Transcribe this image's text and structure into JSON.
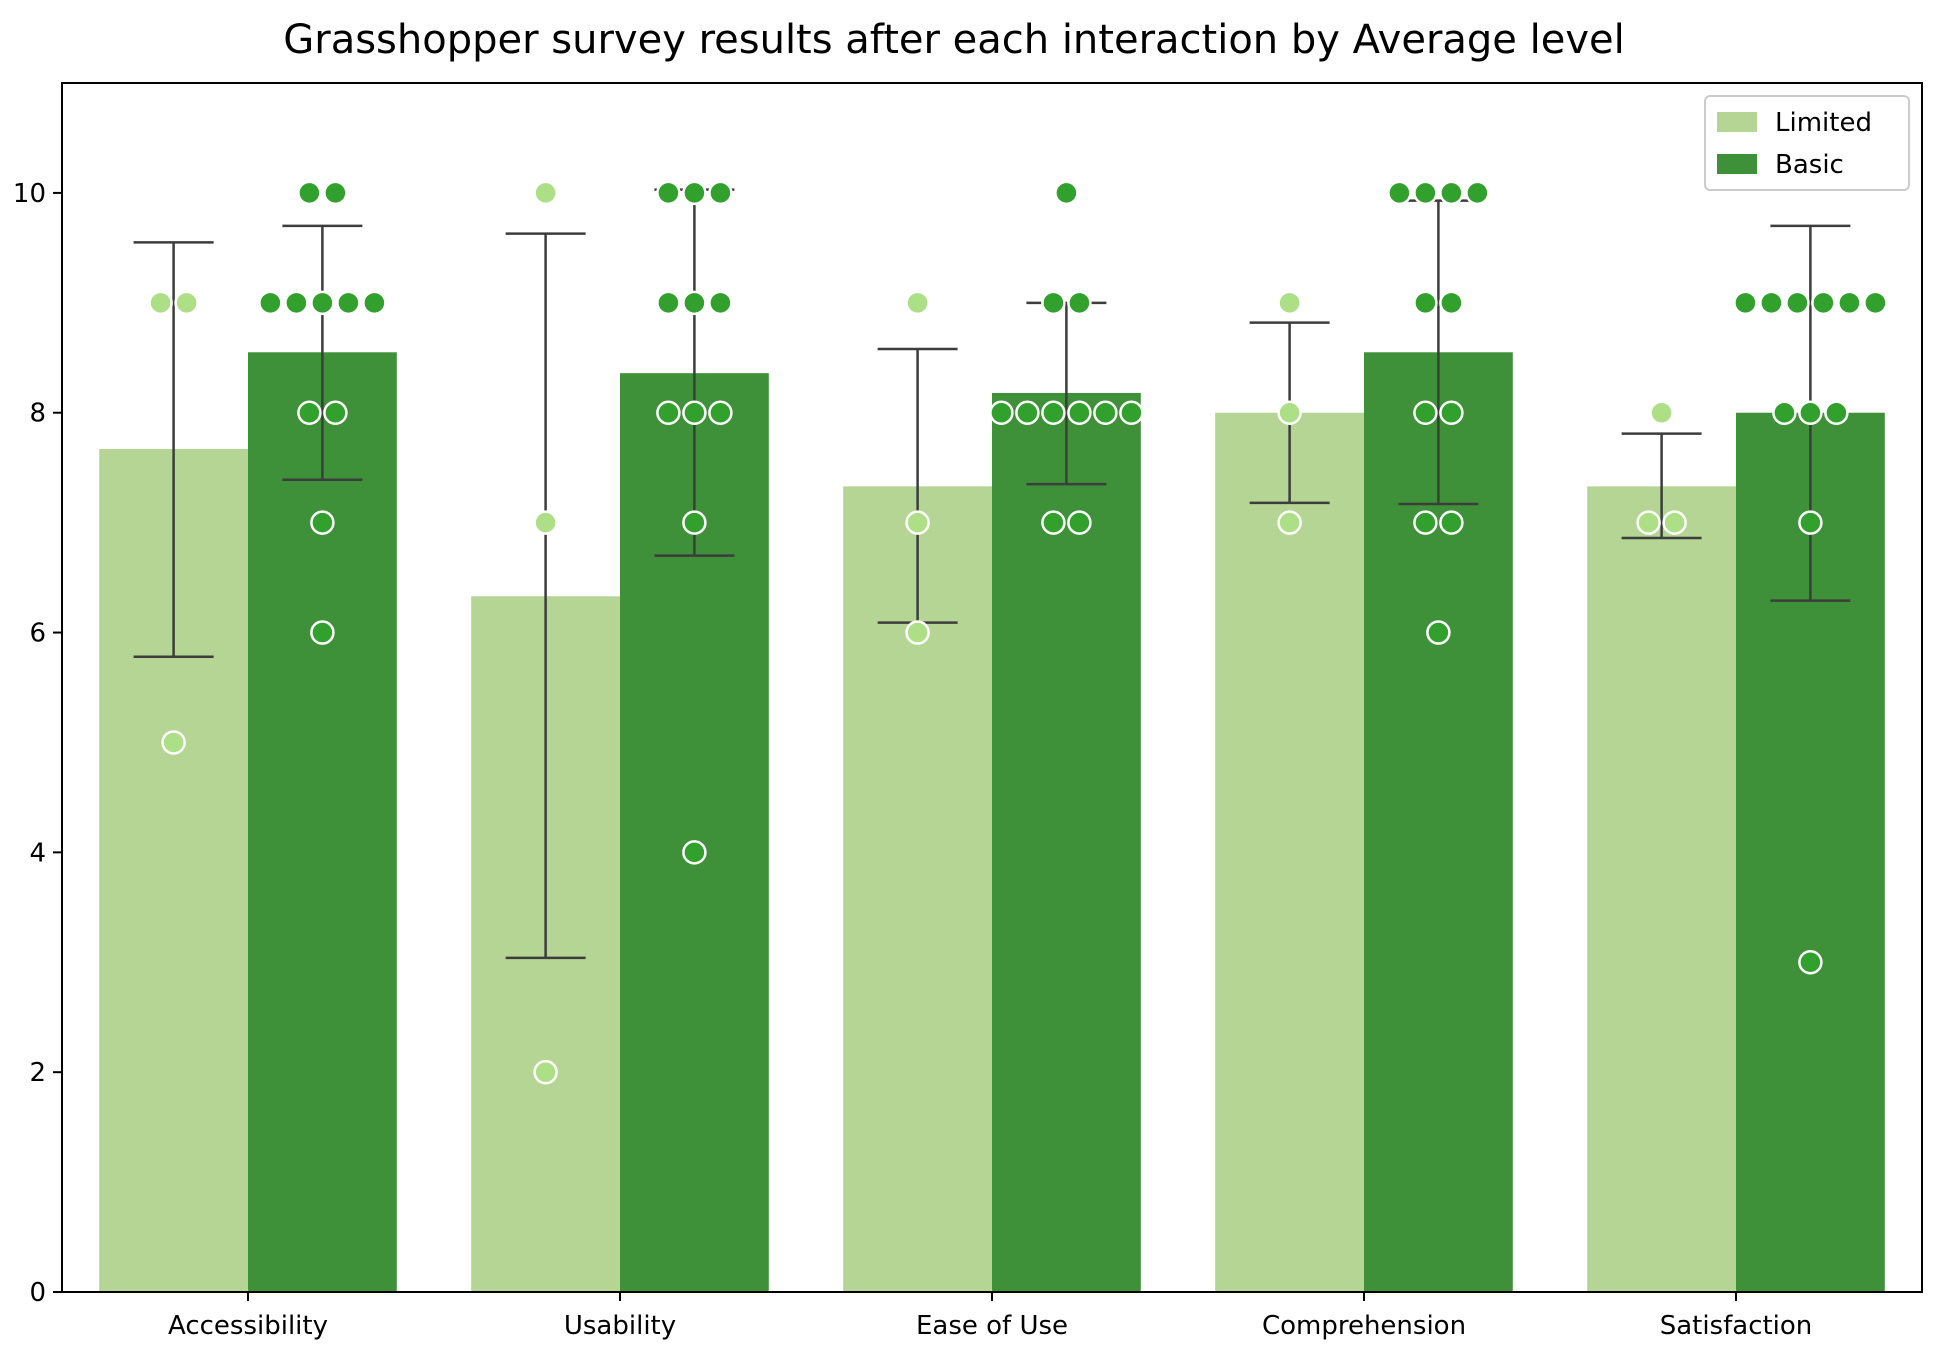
{
  "chart_data": {
    "type": "bar",
    "title": "Grasshopper survey results after each interaction by Average level",
    "xlabel": "",
    "ylabel": "",
    "ylim": [
      0,
      11
    ],
    "yticks": [
      "0",
      "2",
      "4",
      "6",
      "8",
      "10"
    ],
    "categories": [
      "Accessibility",
      "Usability",
      "Ease of Use",
      "Comprehension",
      "Satisfaction"
    ],
    "legend_position": "top-right",
    "grid": false,
    "series": [
      {
        "name": "Limited",
        "color": "#b5d594",
        "point_color": "#addf86",
        "values": [
          7.67,
          6.33,
          7.33,
          8.0,
          7.33
        ],
        "error_low": [
          5.78,
          3.04,
          6.09,
          7.18,
          6.86
        ],
        "error_high": [
          9.55,
          9.63,
          8.58,
          8.82,
          7.81
        ],
        "points": [
          [
            9,
            9,
            5
          ],
          [
            10,
            7,
            2
          ],
          [
            9,
            7,
            6
          ],
          [
            9,
            8,
            7
          ],
          [
            8,
            7,
            7
          ]
        ]
      },
      {
        "name": "Basic",
        "color": "#3f9139",
        "point_color": "#32a02c",
        "values": [
          8.55,
          8.36,
          8.18,
          8.55,
          8.0
        ],
        "error_low": [
          7.39,
          6.7,
          7.35,
          7.17,
          6.29
        ],
        "error_high": [
          9.7,
          10.03,
          9.0,
          9.93,
          9.7
        ],
        "points": [
          [
            10,
            10,
            9,
            9,
            9,
            9,
            9,
            8,
            8,
            7,
            6
          ],
          [
            10,
            10,
            10,
            9,
            9,
            9,
            8,
            8,
            8,
            7,
            4
          ],
          [
            10,
            9,
            9,
            8,
            8,
            8,
            8,
            8,
            8,
            7,
            7
          ],
          [
            10,
            10,
            10,
            10,
            9,
            9,
            8,
            8,
            7,
            7,
            6
          ],
          [
            9,
            9,
            9,
            9,
            9,
            9,
            8,
            8,
            8,
            7,
            3
          ]
        ]
      }
    ]
  }
}
